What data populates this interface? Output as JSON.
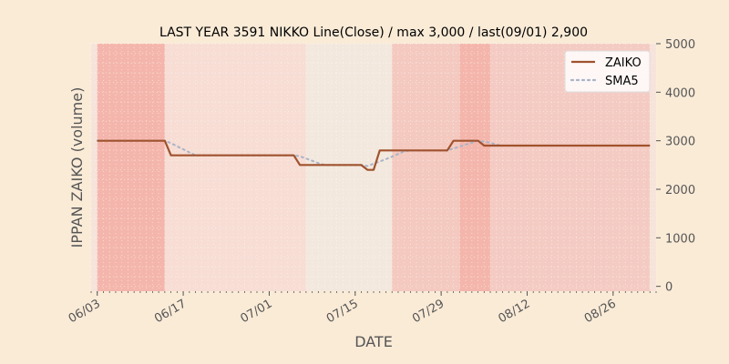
{
  "chart_data": {
    "type": "line",
    "title": "LAST YEAR 3591 NIKKO Line(Close) / max 3,000 / last(09/01) 2,900",
    "xlabel": "DATE",
    "ylabel": "IPPAN ZAIKO (volume)",
    "y_axis_side": "right",
    "ylim": [
      -100,
      5000
    ],
    "y_ticks": [
      0,
      1000,
      2000,
      3000,
      4000,
      5000
    ],
    "x_range": [
      "2023-06-02",
      "2023-09-02"
    ],
    "x_ticks": [
      {
        "date": "2023-06-03",
        "label": "06/03"
      },
      {
        "date": "2023-06-17",
        "label": "06/17"
      },
      {
        "date": "2023-07-01",
        "label": "07/01"
      },
      {
        "date": "2023-07-15",
        "label": "07/15"
      },
      {
        "date": "2023-07-29",
        "label": "07/29"
      },
      {
        "date": "2023-08-12",
        "label": "08/12"
      },
      {
        "date": "2023-08-26",
        "label": "08/26"
      }
    ],
    "legend": {
      "position": "top-right"
    },
    "series": [
      {
        "name": "ZAIKO",
        "color": "#a0522d",
        "style": "solid",
        "points": [
          [
            "2023-06-03",
            3000
          ],
          [
            "2023-06-14",
            3000
          ],
          [
            "2023-06-15",
            2700
          ],
          [
            "2023-07-05",
            2700
          ],
          [
            "2023-07-06",
            2500
          ],
          [
            "2023-07-16",
            2500
          ],
          [
            "2023-07-17",
            2400
          ],
          [
            "2023-07-18",
            2400
          ],
          [
            "2023-07-19",
            2800
          ],
          [
            "2023-07-30",
            2800
          ],
          [
            "2023-07-31",
            3000
          ],
          [
            "2023-08-04",
            3000
          ],
          [
            "2023-08-05",
            2900
          ],
          [
            "2023-09-01",
            2900
          ]
        ]
      },
      {
        "name": "SMA5",
        "color": "#a9b4c8",
        "style": "dotted",
        "points": [
          [
            "2023-06-03",
            3000
          ],
          [
            "2023-06-14",
            3000
          ],
          [
            "2023-06-15",
            2950
          ],
          [
            "2023-06-18",
            2760
          ],
          [
            "2023-06-19",
            2700
          ],
          [
            "2023-07-05",
            2700
          ],
          [
            "2023-07-06",
            2680
          ],
          [
            "2023-07-09",
            2540
          ],
          [
            "2023-07-10",
            2500
          ],
          [
            "2023-07-16",
            2500
          ],
          [
            "2023-07-17",
            2480
          ],
          [
            "2023-07-20",
            2620
          ],
          [
            "2023-07-23",
            2780
          ],
          [
            "2023-07-24",
            2800
          ],
          [
            "2023-07-30",
            2800
          ],
          [
            "2023-07-31",
            2840
          ],
          [
            "2023-08-03",
            2960
          ],
          [
            "2023-08-04",
            3000
          ],
          [
            "2023-08-06",
            2960
          ],
          [
            "2023-08-07",
            2920
          ],
          [
            "2023-08-08",
            2900
          ],
          [
            "2023-09-01",
            2900
          ]
        ]
      }
    ],
    "bands": [
      {
        "start": "2023-06-02",
        "end": "2023-06-03",
        "color": "#f6e3da"
      },
      {
        "start": "2023-06-03",
        "end": "2023-06-14",
        "color": "#f4b6ac"
      },
      {
        "start": "2023-06-14",
        "end": "2023-07-07",
        "color": "#f7ddd4"
      },
      {
        "start": "2023-07-07",
        "end": "2023-07-21",
        "color": "#f3e8de"
      },
      {
        "start": "2023-07-21",
        "end": "2023-08-01",
        "color": "#f4c9bf"
      },
      {
        "start": "2023-08-01",
        "end": "2023-08-06",
        "color": "#f4b6ac"
      },
      {
        "start": "2023-08-06",
        "end": "2023-09-01",
        "color": "#f4cbc3"
      },
      {
        "start": "2023-09-01",
        "end": "2023-09-02",
        "color": "#f6e3da"
      }
    ]
  }
}
